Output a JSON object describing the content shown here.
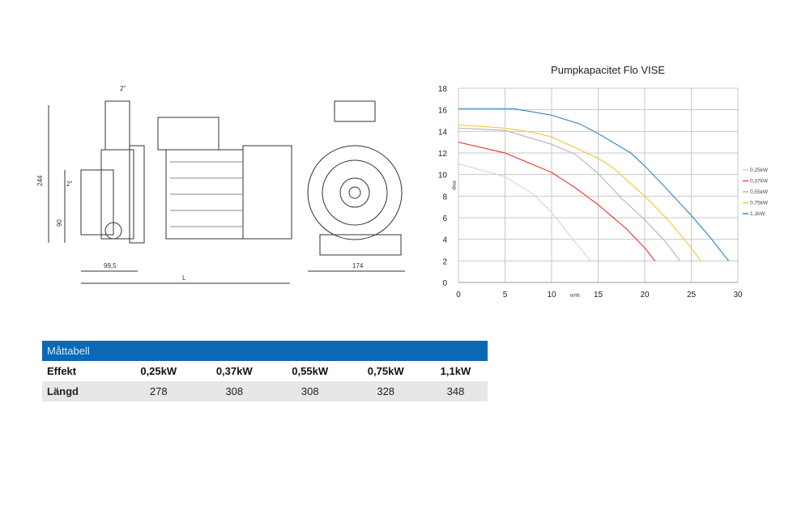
{
  "drawing": {
    "labels": {
      "inlet": "2\"",
      "outlet": "2\"",
      "height": "244",
      "center": "90",
      "offset": "99,5",
      "length": "L",
      "width": "174"
    }
  },
  "chart_data": {
    "type": "line",
    "title": "Pumpkapacitet Flo VISE",
    "xlabel": "m³/h",
    "ylabel": "mvp",
    "xlim": [
      0,
      30
    ],
    "ylim": [
      0,
      18
    ],
    "xticks": [
      0,
      5,
      10,
      15,
      20,
      25,
      30
    ],
    "yticks": [
      0,
      2,
      4,
      6,
      8,
      10,
      12,
      14,
      16,
      18
    ],
    "grid": true,
    "legend_position": "right",
    "series": [
      {
        "name": "0,25kW",
        "color": "#d8d8d8",
        "points": [
          [
            0,
            11
          ],
          [
            5,
            9.8
          ],
          [
            8,
            8.2
          ],
          [
            10,
            6.5
          ],
          [
            12,
            4.3
          ],
          [
            14.2,
            2
          ]
        ]
      },
      {
        "name": "0,37kW",
        "color": "#e8453c",
        "points": [
          [
            0,
            13
          ],
          [
            5,
            12
          ],
          [
            10,
            10.2
          ],
          [
            12.5,
            8.8
          ],
          [
            15,
            7.2
          ],
          [
            18,
            5
          ],
          [
            20,
            3.2
          ],
          [
            21.1,
            2
          ]
        ]
      },
      {
        "name": "0,55kW",
        "color": "#b8b8b8",
        "points": [
          [
            0,
            14.3
          ],
          [
            5,
            14.1
          ],
          [
            10,
            12.8
          ],
          [
            12.5,
            11.9
          ],
          [
            15,
            10.1
          ],
          [
            17.5,
            7.8
          ],
          [
            20,
            5.8
          ],
          [
            22,
            4
          ],
          [
            23.8,
            2
          ]
        ]
      },
      {
        "name": "0,75kW",
        "color": "#f5c842",
        "points": [
          [
            0,
            14.6
          ],
          [
            5,
            14.3
          ],
          [
            8,
            13.9
          ],
          [
            10,
            13.5
          ],
          [
            15,
            11.5
          ],
          [
            16.5,
            10.7
          ],
          [
            20,
            8
          ],
          [
            22.5,
            5.8
          ],
          [
            25,
            3.2
          ],
          [
            26,
            2
          ]
        ]
      },
      {
        "name": "1,1kW",
        "color": "#3a8cc8",
        "points": [
          [
            0,
            16.1
          ],
          [
            6,
            16.1
          ],
          [
            10,
            15.5
          ],
          [
            13,
            14.7
          ],
          [
            15,
            13.8
          ],
          [
            18.5,
            12
          ],
          [
            20,
            10.8
          ],
          [
            22,
            9
          ],
          [
            25,
            6.2
          ],
          [
            27,
            4.2
          ],
          [
            29,
            2
          ]
        ]
      }
    ]
  },
  "table": {
    "title": "Måttabell",
    "row1": [
      "Effekt",
      "0,25kW",
      "0,37kW",
      "0,55kW",
      "0,75kW",
      "1,1kW"
    ],
    "row2": [
      "Längd",
      "278",
      "308",
      "308",
      "328",
      "348"
    ]
  }
}
